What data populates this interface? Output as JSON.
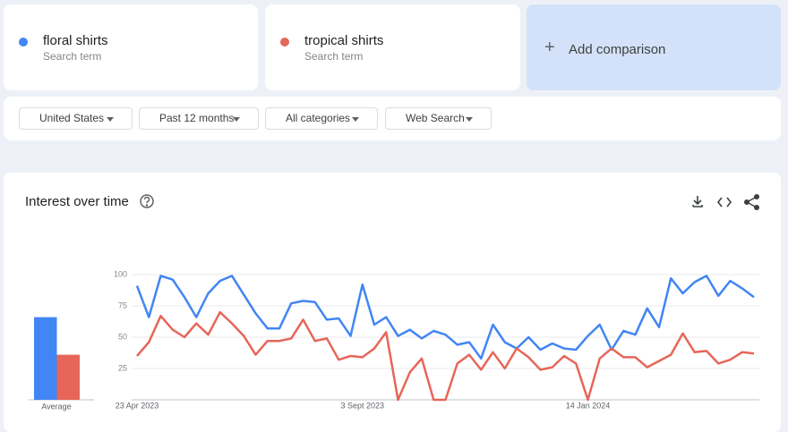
{
  "search_term_caption": "Search term",
  "add_comparison": "Add comparison",
  "filters": [
    "United States",
    "Past 12 months",
    "All categories",
    "Web Search"
  ],
  "chart_data": {
    "type": "line",
    "title": "Interest over time",
    "average_label": "Average",
    "categories": [
      "23 Apr 2023",
      null,
      null,
      null,
      null,
      null,
      null,
      null,
      null,
      null,
      null,
      null,
      null,
      null,
      null,
      null,
      null,
      null,
      null,
      "3 Sept 2023",
      null,
      null,
      null,
      null,
      null,
      null,
      null,
      null,
      null,
      null,
      null,
      null,
      null,
      null,
      null,
      null,
      null,
      null,
      "14 Jan 2024",
      null,
      null,
      null,
      null,
      null,
      null,
      null,
      null,
      null,
      null,
      null,
      null,
      null,
      null
    ],
    "series": [
      {
        "name": "floral shirts",
        "color": "#4285f4",
        "average": 66,
        "values": [
          91,
          66,
          99,
          96,
          82,
          66,
          85,
          95,
          99,
          84,
          69,
          57,
          57,
          77,
          79,
          78,
          64,
          65,
          51,
          92,
          60,
          66,
          51,
          56,
          49,
          55,
          52,
          44,
          46,
          33,
          60,
          46,
          41,
          50,
          40,
          45,
          41,
          40,
          51,
          60,
          40,
          55,
          52,
          73,
          58,
          97,
          85,
          94,
          99,
          83,
          95,
          89,
          82
        ]
      },
      {
        "name": "tropical shirts",
        "color": "#e66659",
        "average": 36,
        "values": [
          35,
          46,
          67,
          56,
          50,
          61,
          52,
          70,
          61,
          51,
          36,
          47,
          47,
          49,
          64,
          47,
          49,
          32,
          35,
          34,
          41,
          54,
          0,
          22,
          33,
          0,
          0,
          29,
          36,
          24,
          38,
          25,
          41,
          34,
          24,
          26,
          35,
          29,
          0,
          33,
          41,
          34,
          34,
          26,
          31,
          36,
          53,
          38,
          39,
          29,
          32,
          38,
          37
        ]
      }
    ],
    "ylim": [
      0,
      100
    ],
    "yticks": [
      25,
      50,
      75,
      100
    ],
    "grid": true
  }
}
